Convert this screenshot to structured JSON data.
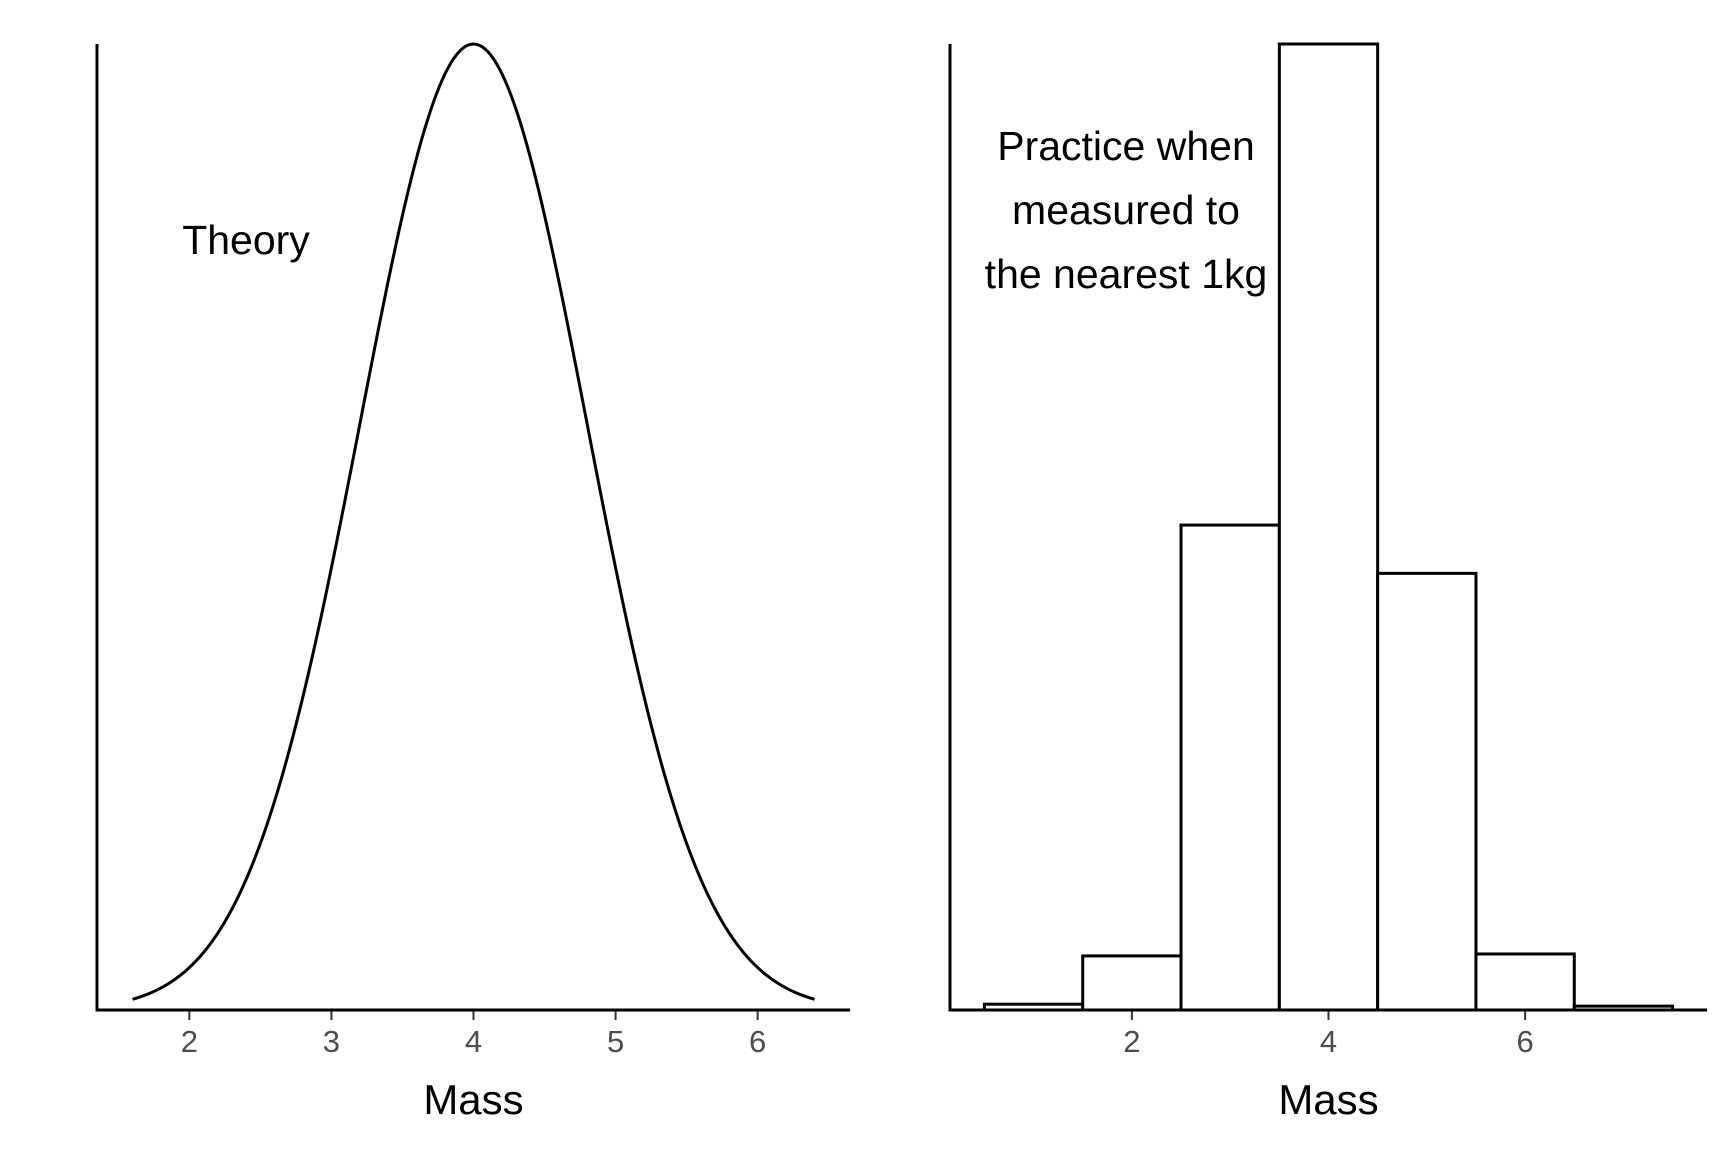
{
  "chart_data": [
    {
      "type": "line",
      "title": "",
      "annotation": [
        "Theory"
      ],
      "xlabel": "Mass",
      "ylabel": "",
      "xlim": [
        1.35,
        6.65
      ],
      "ylim": [
        0,
        0.4
      ],
      "x_ticks": [
        2,
        3,
        4,
        5,
        6
      ],
      "curve": {
        "kind": "normal-density",
        "mean": 4,
        "sd": 0.8,
        "x_range": [
          1.6,
          6.4
        ]
      },
      "grid": false,
      "legend": "none",
      "line_color": "#000000"
    },
    {
      "type": "bar",
      "title": "",
      "annotation": [
        "Practice when",
        "measured to",
        "the nearest 1kg"
      ],
      "xlabel": "Mass",
      "ylabel": "",
      "xlim": [
        0.15,
        7.85
      ],
      "ylim": [
        0,
        0.5
      ],
      "x_ticks": [
        2,
        4,
        6
      ],
      "categories": [
        1,
        2,
        3,
        4,
        5,
        6,
        7
      ],
      "values": [
        0.003,
        0.028,
        0.251,
        0.5,
        0.226,
        0.029,
        0.002
      ],
      "bin_width": 1,
      "grid": false,
      "legend": "none",
      "bar_fill": "#ffffff",
      "bar_stroke": "#000000"
    }
  ]
}
